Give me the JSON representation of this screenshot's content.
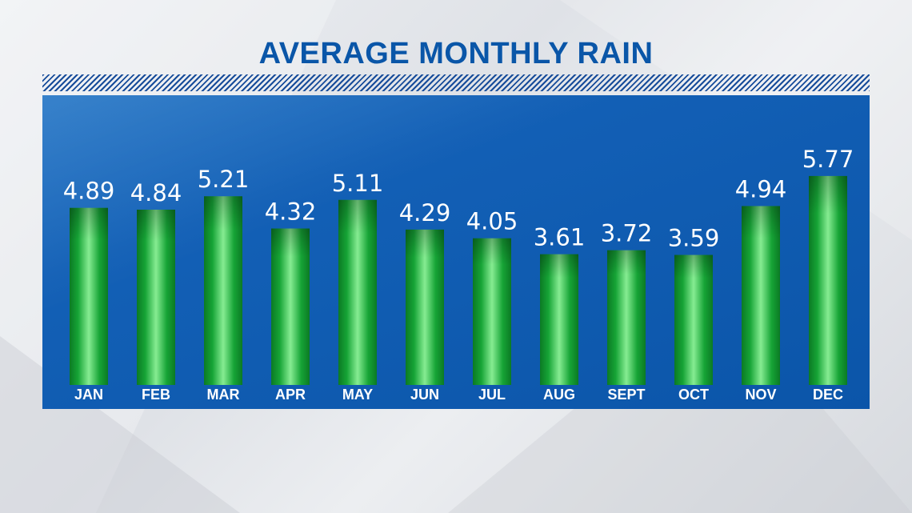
{
  "colors": {
    "title": "#0a56a8",
    "panel": "#0b55a9",
    "stripe": "#174c9a",
    "bar_edge": "#0a7a22",
    "bar_center": "#7fe88c",
    "label_text": "#ffffff"
  },
  "chart_data": {
    "type": "bar",
    "title": "AVERAGE MONTHLY RAIN",
    "categories": [
      "JAN",
      "FEB",
      "MAR",
      "APR",
      "MAY",
      "JUN",
      "JUL",
      "AUG",
      "SEPT",
      "OCT",
      "NOV",
      "DEC"
    ],
    "values": [
      4.89,
      4.84,
      5.21,
      4.32,
      5.11,
      4.29,
      4.05,
      3.61,
      3.72,
      3.59,
      4.94,
      5.77
    ],
    "value_labels": [
      "4.89",
      "4.84",
      "5.21",
      "4.32",
      "5.11",
      "4.29",
      "4.05",
      "3.61",
      "3.72",
      "3.59",
      "4.94",
      "5.77"
    ],
    "xlabel": "",
    "ylabel": "",
    "ylim": [
      0,
      8
    ],
    "grid": false,
    "legend": "none"
  }
}
